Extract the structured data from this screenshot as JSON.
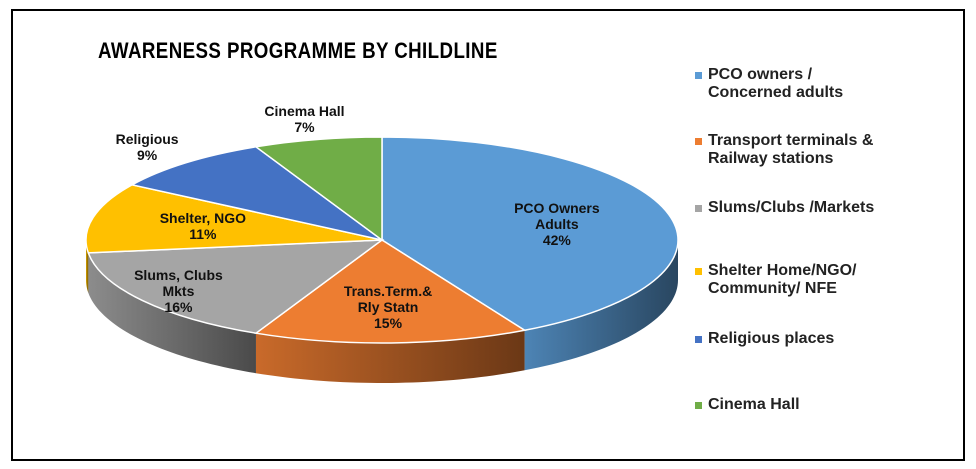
{
  "chart_data": {
    "type": "pie",
    "title": "AWARENESS PROGRAMME BY CHILDLINE",
    "categories": [
      "PCO owners /\nConcerned adults",
      "Transport terminals &\nRailway stations",
      "Slums/Clubs /Markets",
      "Shelter Home/NGO/\nCommunity/ NFE",
      "Religious places",
      "Cinema Hall"
    ],
    "labels": [
      "PCO Owners\nAdults",
      "Trans.Term.&\nRly Statn",
      "Slums, Clubs\nMkts",
      "Shelter, NGO",
      "Religious",
      "Cinema Hall"
    ],
    "values": [
      42,
      15,
      16,
      11,
      9,
      7
    ],
    "value_labels": [
      "42%",
      "15%",
      "16%",
      "11%",
      "9%",
      "7%"
    ],
    "colors": [
      "#5b9bd5",
      "#ed7d31",
      "#a5a5a5",
      "#ffc000",
      "#4472c4",
      "#70ad47"
    ],
    "legend": "right"
  }
}
